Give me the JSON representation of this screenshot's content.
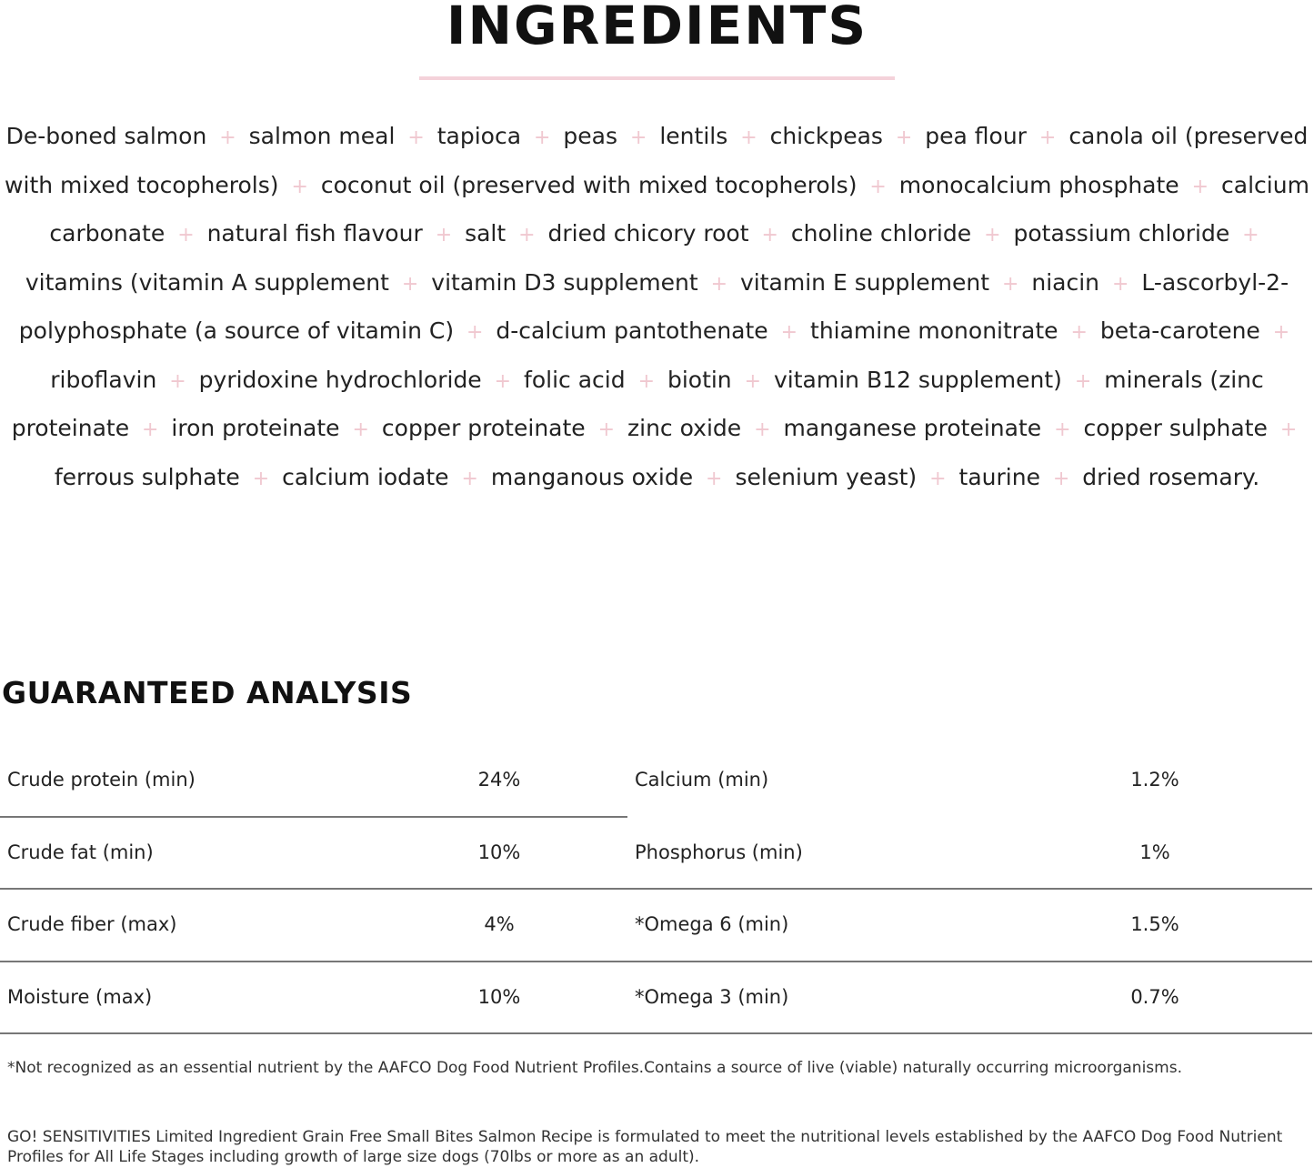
{
  "ingredients": {
    "title": "INGREDIENTS",
    "items": [
      "De-boned salmon",
      "salmon meal",
      "tapioca",
      "peas",
      "lentils",
      "chickpeas",
      "pea flour",
      "canola oil (preserved with mixed tocopherols)",
      "coconut oil (preserved with mixed tocopherols)",
      "monocalcium phosphate",
      "calcium carbonate",
      "natural fish flavour",
      "salt",
      "dried chicory root",
      "choline chloride",
      "potassium chloride",
      "vitamins (vitamin A supplement",
      "vitamin D3 supplement",
      "vitamin E supplement",
      "niacin",
      "L-ascorbyl-2-polyphosphate (a source of vitamin C)",
      "d-calcium pantothenate",
      "thiamine mononitrate",
      "beta-carotene",
      "riboflavin",
      "pyridoxine hydrochloride",
      "folic acid",
      "biotin",
      "vitamin B12 supplement)",
      "minerals (zinc proteinate",
      "iron proteinate",
      "copper proteinate",
      "zinc oxide",
      "manganese proteinate",
      "copper sulphate",
      "ferrous sulphate",
      "calcium iodate",
      "manganous oxide",
      "selenium yeast)",
      "taurine",
      "dried rosemary."
    ],
    "separator": "+",
    "separator_color": "#f0c8d0",
    "accent_rule_color": "#f4d2da"
  },
  "analysis": {
    "title": "GUARANTEED ANALYSIS",
    "left": [
      {
        "label": "Crude protein (min)",
        "value": "24%"
      },
      {
        "label": "Crude fat (min)",
        "value": "10%"
      },
      {
        "label": "Crude fiber (max)",
        "value": "4%"
      },
      {
        "label": "Moisture (max)",
        "value": "10%"
      }
    ],
    "right": [
      {
        "label": "Calcium (min)",
        "value": "1.2%"
      },
      {
        "label": "Phosphorus (min)",
        "value": "1%"
      },
      {
        "label": "*Omega 6 (min)",
        "value": "1.5%"
      },
      {
        "label": "*Omega 3 (min)",
        "value": "0.7%"
      }
    ]
  },
  "footnote": "*Not recognized as an essential nutrient by the AAFCO Dog Food Nutrient Profiles.Contains a source of live (viable) naturally occurring microorganisms.",
  "statement": "GO! SENSITIVITIES Limited Ingredient Grain Free Small Bites Salmon Recipe is formulated to meet the nutritional levels established by the AAFCO Dog Food Nutrient Profiles for All Life Stages including growth of large size dogs (70lbs or more as an adult)."
}
